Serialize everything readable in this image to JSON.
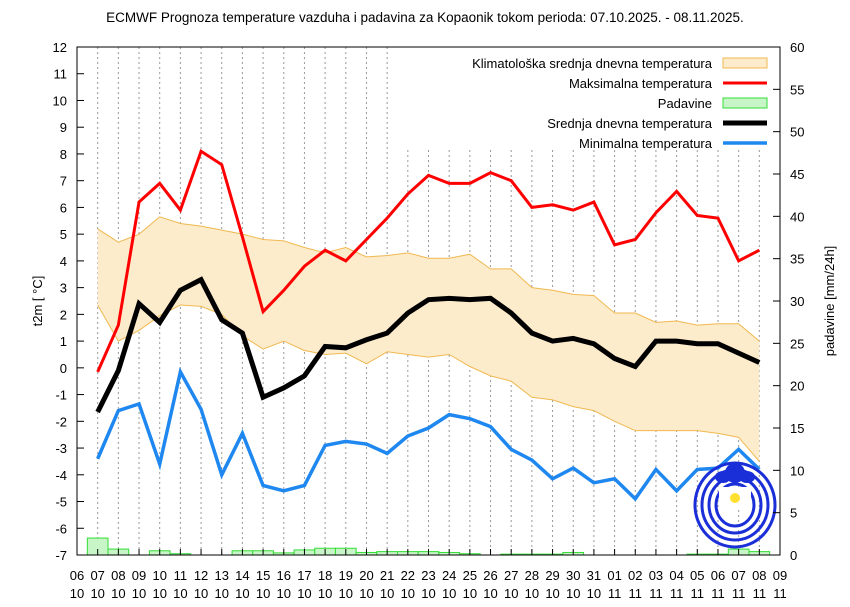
{
  "chart_data": {
    "type": "line",
    "title": "ECMWF Prognoza temperature vazduha i padavina za Kopaonik tokom perioda: 07.10.2025. - 08.11.2025.",
    "ylabel": "t2m [ °C]",
    "y2label": "padavine [mm/24h]",
    "ylim": [
      -7,
      12
    ],
    "y2lim": [
      0,
      60
    ],
    "yticks": [
      "-7",
      "-6",
      "-5",
      "-4",
      "-3",
      "-2",
      "-1",
      "0",
      "1",
      "2",
      "3",
      "4",
      "5",
      "6",
      "7",
      "8",
      "9",
      "10",
      "11",
      "12"
    ],
    "y2ticks": [
      "0",
      "5",
      "10",
      "15",
      "20",
      "25",
      "30",
      "35",
      "40",
      "45",
      "50",
      "55",
      "60"
    ],
    "xtick_days": [
      "06",
      "07",
      "08",
      "09",
      "10",
      "11",
      "12",
      "13",
      "14",
      "15",
      "16",
      "17",
      "18",
      "19",
      "20",
      "21",
      "22",
      "23",
      "24",
      "25",
      "26",
      "27",
      "28",
      "29",
      "30",
      "31",
      "01",
      "02",
      "03",
      "04",
      "05",
      "06",
      "07",
      "08",
      "09"
    ],
    "xtick_months": [
      "10",
      "10",
      "10",
      "10",
      "10",
      "10",
      "10",
      "10",
      "10",
      "10",
      "10",
      "10",
      "10",
      "10",
      "10",
      "10",
      "10",
      "10",
      "10",
      "10",
      "10",
      "10",
      "10",
      "10",
      "10",
      "10",
      "11",
      "11",
      "11",
      "11",
      "11",
      "11",
      "11",
      "11",
      "11"
    ],
    "x": [
      "07.10",
      "08.10",
      "09.10",
      "10.10",
      "11.10",
      "12.10",
      "13.10",
      "14.10",
      "15.10",
      "16.10",
      "17.10",
      "18.10",
      "19.10",
      "20.10",
      "21.10",
      "22.10",
      "23.10",
      "24.10",
      "25.10",
      "26.10",
      "27.10",
      "28.10",
      "29.10",
      "30.10",
      "31.10",
      "01.11",
      "02.11",
      "03.11",
      "04.11",
      "05.11",
      "06.11",
      "07.11",
      "08.11"
    ],
    "grid": "vertical dotted",
    "legend_position": "top-right",
    "climatology_band": {
      "name": "Klimatološka srednja dnevna temperatura",
      "color": "#fdeccb",
      "edge_color": "#f0b850",
      "upper": [
        5.2,
        4.7,
        5.0,
        5.65,
        5.4,
        5.3,
        5.15,
        5.0,
        4.8,
        4.75,
        4.5,
        4.3,
        4.5,
        4.15,
        4.2,
        4.3,
        4.1,
        4.1,
        4.25,
        3.7,
        3.7,
        3.0,
        2.9,
        2.75,
        2.7,
        2.05,
        2.05,
        1.7,
        1.75,
        1.6,
        1.65,
        1.65,
        1.0
      ],
      "lower": [
        2.35,
        1.0,
        1.4,
        1.95,
        2.35,
        2.3,
        2.0,
        1.2,
        0.7,
        1.0,
        0.65,
        0.5,
        0.55,
        0.15,
        0.6,
        0.5,
        0.4,
        0.5,
        0.05,
        -0.3,
        -0.5,
        -1.1,
        -1.2,
        -1.45,
        -1.6,
        -2.0,
        -2.35,
        -2.35,
        -2.35,
        -2.35,
        -2.45,
        -2.6,
        -3.5
      ]
    },
    "series": [
      {
        "name": "Maksimalna temperatura",
        "color": "#ff0000",
        "values": [
          -0.15,
          1.6,
          6.2,
          6.9,
          5.9,
          8.1,
          7.6,
          4.9,
          2.1,
          2.9,
          3.8,
          4.4,
          4.0,
          4.8,
          5.6,
          6.5,
          7.2,
          6.9,
          6.9,
          7.3,
          7.0,
          6.0,
          6.1,
          5.9,
          6.2,
          4.6,
          4.8,
          5.8,
          6.6,
          5.7,
          5.6,
          4.0,
          4.4
        ]
      },
      {
        "name": "Srednja dnevna temperatura",
        "color": "#000000",
        "values": [
          -1.65,
          -0.1,
          2.4,
          1.7,
          2.9,
          3.3,
          1.8,
          1.3,
          -1.1,
          -0.75,
          -0.3,
          0.8,
          0.75,
          1.05,
          1.3,
          2.05,
          2.55,
          2.6,
          2.55,
          2.6,
          2.05,
          1.3,
          1.0,
          1.1,
          0.9,
          0.35,
          0.05,
          1.0,
          1.0,
          0.9,
          0.9,
          0.55,
          0.2
        ]
      },
      {
        "name": "Minimalna temperatura",
        "color": "#1e88f0",
        "values": [
          -3.4,
          -1.6,
          -1.35,
          -3.6,
          -0.15,
          -1.55,
          -4.0,
          -2.45,
          -4.4,
          -4.6,
          -4.4,
          -2.9,
          -2.75,
          -2.85,
          -3.2,
          -2.55,
          -2.25,
          -1.75,
          -1.9,
          -2.2,
          -3.05,
          -3.45,
          -4.15,
          -3.75,
          -4.3,
          -4.15,
          -4.9,
          -3.8,
          -4.6,
          -3.8,
          -3.75,
          -3.05,
          -3.8
        ]
      }
    ],
    "precipitation": {
      "name": "Padavine",
      "color": "#c8f5c8",
      "edge_color": "#33dd33",
      "values": [
        2.0,
        0.7,
        0,
        0.5,
        0.15,
        0,
        0,
        0.5,
        0.5,
        0.25,
        0.6,
        0.8,
        0.8,
        0.3,
        0.4,
        0.4,
        0.4,
        0.3,
        0.15,
        0,
        0.1,
        0.1,
        0.1,
        0.3,
        0,
        0,
        0,
        0,
        0,
        0.1,
        0.1,
        0.7,
        0.4
      ]
    },
    "legend_order": [
      "climatology",
      "max",
      "precip",
      "mean",
      "min"
    ]
  }
}
